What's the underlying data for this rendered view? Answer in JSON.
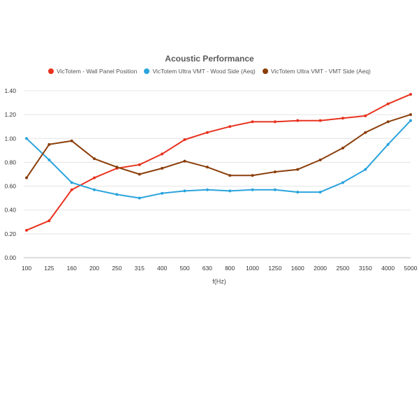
{
  "chart_data": {
    "type": "line",
    "title": "Acoustic Performance",
    "xlabel": "f(Hz)",
    "ylabel": "",
    "ylim": [
      0,
      1.4
    ],
    "yticks": [
      "0.00",
      "0.20",
      "0.40",
      "0.60",
      "0.80",
      "1.00",
      "1.20",
      "1.40"
    ],
    "grid": true,
    "legend_position": "top",
    "categories": [
      "100",
      "125",
      "160",
      "200",
      "250",
      "315",
      "400",
      "500",
      "630",
      "800",
      "1000",
      "1250",
      "1600",
      "2000",
      "2500",
      "3150",
      "4000",
      "5000"
    ],
    "series": [
      {
        "name": "VicTotem - Wall Panel Position",
        "color": "#e8321e",
        "values": [
          0.23,
          0.31,
          0.57,
          0.67,
          0.75,
          0.78,
          0.87,
          0.99,
          1.05,
          1.1,
          1.14,
          1.14,
          1.15,
          1.15,
          1.17,
          1.19,
          1.29,
          1.37
        ]
      },
      {
        "name": "VicTotem Ultra VMT - Wood Side (Aeq)",
        "color": "#2aa4dc",
        "values": [
          1.0,
          0.82,
          0.63,
          0.57,
          0.53,
          0.5,
          0.54,
          0.56,
          0.57,
          0.56,
          0.57,
          0.57,
          0.55,
          0.55,
          0.63,
          0.74,
          0.95,
          1.15
        ]
      },
      {
        "name": "VicTotem Ultra VMT - VMT Side (Aeq)",
        "color": "#8b3e0a",
        "values": [
          0.67,
          0.95,
          0.98,
          0.83,
          0.76,
          0.7,
          0.75,
          0.81,
          0.76,
          0.69,
          0.69,
          0.72,
          0.74,
          0.82,
          0.92,
          1.05,
          1.14,
          1.2
        ]
      }
    ]
  }
}
